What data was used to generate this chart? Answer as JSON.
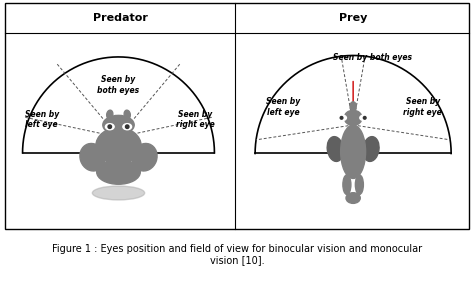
{
  "caption": "Figure 1 : Eyes position and field of view for binocular vision and monocular\nvision [10].",
  "left_title": "Predator",
  "right_title": "Prey",
  "bg_color": "#ffffff",
  "border_color": "#000000",
  "animal_color": "#808080",
  "animal_dark_color": "#606060",
  "dashed_color": "#555555",
  "arc_color": "#000000",
  "arrow_color": "#cc0000",
  "text_color": "#000000",
  "font_size_title": 7,
  "font_size_label": 5.5,
  "font_size_caption": 7
}
